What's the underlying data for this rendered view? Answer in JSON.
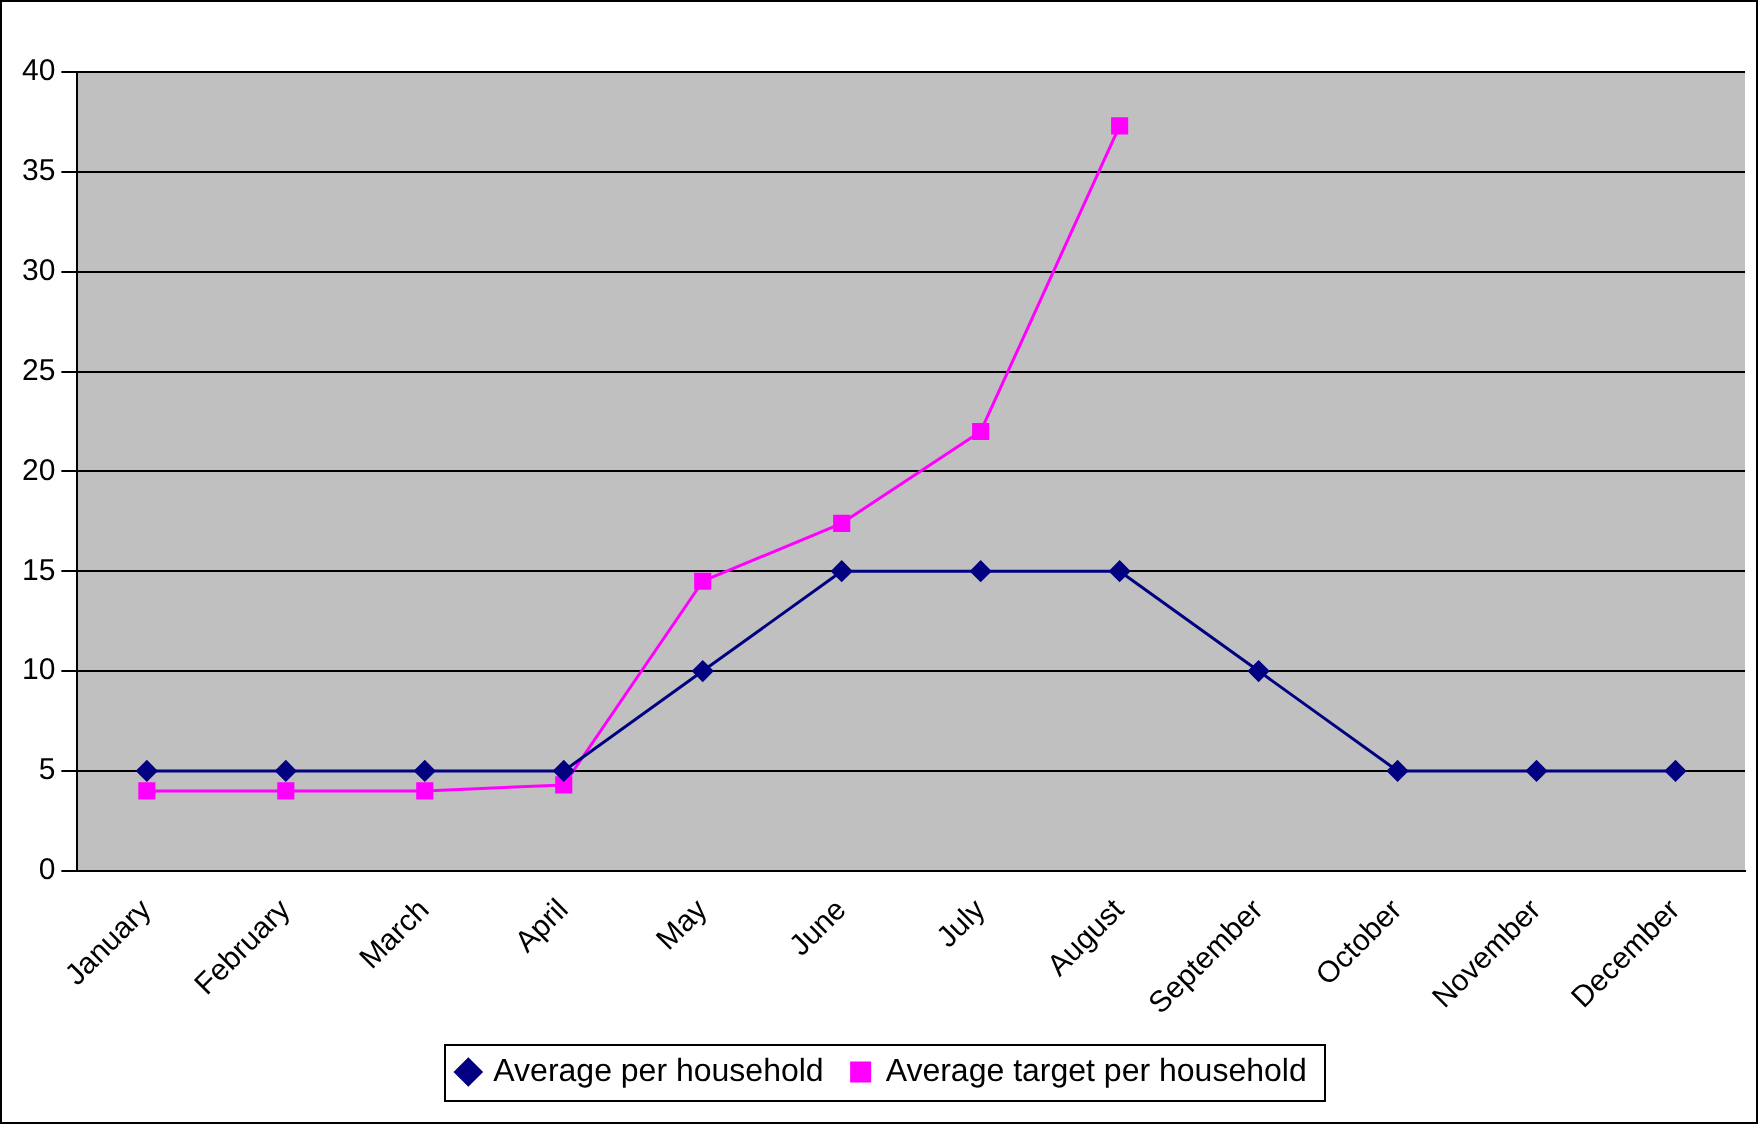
{
  "chart_data": {
    "type": "line",
    "categories": [
      "January",
      "February",
      "March",
      "April",
      "May",
      "June",
      "July",
      "August",
      "September",
      "October",
      "November",
      "December"
    ],
    "series": [
      {
        "name": "Average per household",
        "color": "#000080",
        "marker": "diamond",
        "values": [
          5,
          5,
          5,
          5,
          10,
          15,
          15,
          15,
          10,
          5,
          5,
          5
        ]
      },
      {
        "name": "Average target per household",
        "color": "#ff00ff",
        "marker": "square",
        "values": [
          4,
          4,
          4,
          4.3,
          14.5,
          17.4,
          22,
          37.3,
          null,
          null,
          null,
          null
        ]
      }
    ],
    "ylim": [
      0,
      40
    ],
    "yticks": [
      0,
      5,
      10,
      15,
      20,
      25,
      30,
      35,
      40
    ],
    "grid": "y",
    "legend": "bottom",
    "line_style": "solid"
  }
}
